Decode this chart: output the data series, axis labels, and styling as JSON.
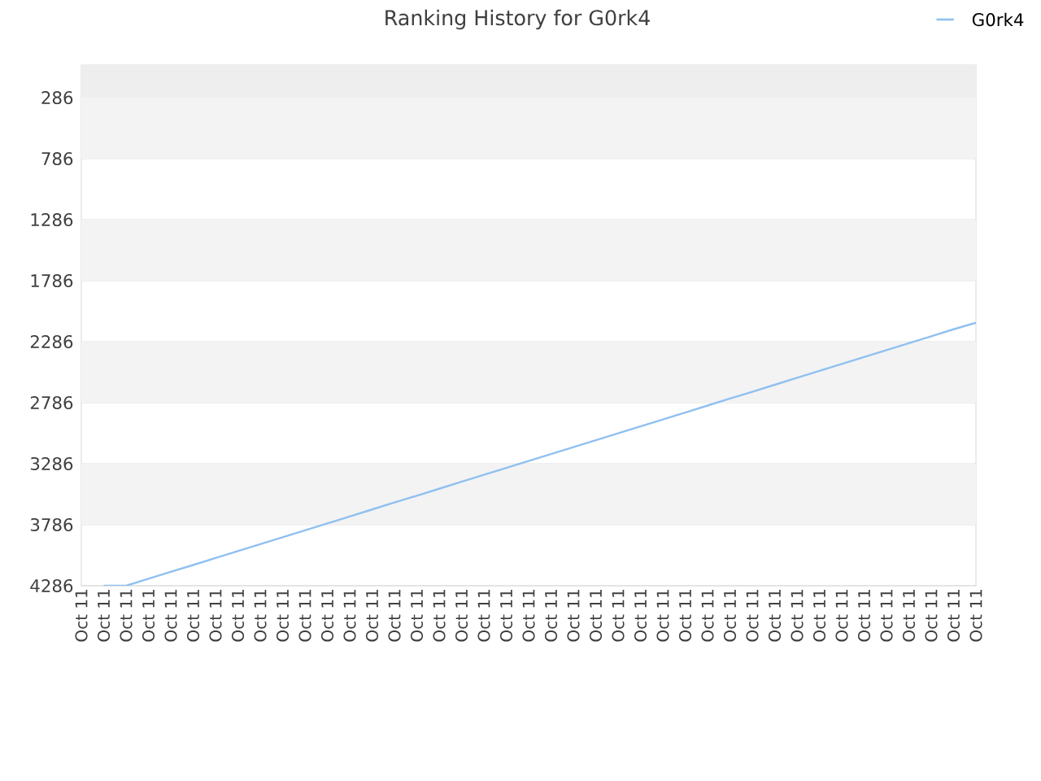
{
  "chart_data": {
    "type": "line",
    "title": "Ranking History for G0rk4",
    "categories": [
      "Oct 11",
      "Oct 11",
      "Oct 11",
      "Oct 11",
      "Oct 11",
      "Oct 11",
      "Oct 11",
      "Oct 11",
      "Oct 11",
      "Oct 11",
      "Oct 11",
      "Oct 11",
      "Oct 11",
      "Oct 11",
      "Oct 11",
      "Oct 11",
      "Oct 11",
      "Oct 11",
      "Oct 11",
      "Oct 11",
      "Oct 11",
      "Oct 11",
      "Oct 11",
      "Oct 11",
      "Oct 11",
      "Oct 11",
      "Oct 11",
      "Oct 11",
      "Oct 11",
      "Oct 11",
      "Oct 11",
      "Oct 11",
      "Oct 11",
      "Oct 11",
      "Oct 11",
      "Oct 11",
      "Oct 11",
      "Oct 11",
      "Oct 11",
      "Oct 11",
      "Oct 11"
    ],
    "series": [
      {
        "name": "G0rk4",
        "color": "#90c0f0",
        "values": [
          null,
          4286,
          4286,
          4229,
          4172,
          4116,
          4059,
          4002,
          3945,
          3888,
          3832,
          3775,
          3718,
          3661,
          3604,
          3548,
          3491,
          3434,
          3377,
          3320,
          3264,
          3207,
          3150,
          3093,
          3036,
          2980,
          2923,
          2866,
          2809,
          2752,
          2696,
          2639,
          2582,
          2525,
          2468,
          2412,
          2355,
          2298,
          2241,
          2184,
          2130
        ]
      }
    ],
    "ylim": [
      4286,
      19
    ],
    "yticks": [
      286,
      786,
      1286,
      1786,
      2286,
      2786,
      3286,
      3786,
      4286
    ],
    "bands": [
      {
        "axis": "y",
        "from": 286,
        "to": 19,
        "color": "#eeeeee"
      },
      {
        "axis": "y",
        "from": 786,
        "to": 286,
        "color": "#f3f3f3"
      },
      {
        "axis": "y",
        "from": 1786,
        "to": 1286,
        "color": "#f3f3f3"
      },
      {
        "axis": "y",
        "from": 2786,
        "to": 2286,
        "color": "#f3f3f3"
      },
      {
        "axis": "y",
        "from": 3786,
        "to": 3286,
        "color": "#f3f3f3"
      }
    ],
    "grid": "y",
    "legend": "top right",
    "marker": "none",
    "line_style": "solid"
  }
}
